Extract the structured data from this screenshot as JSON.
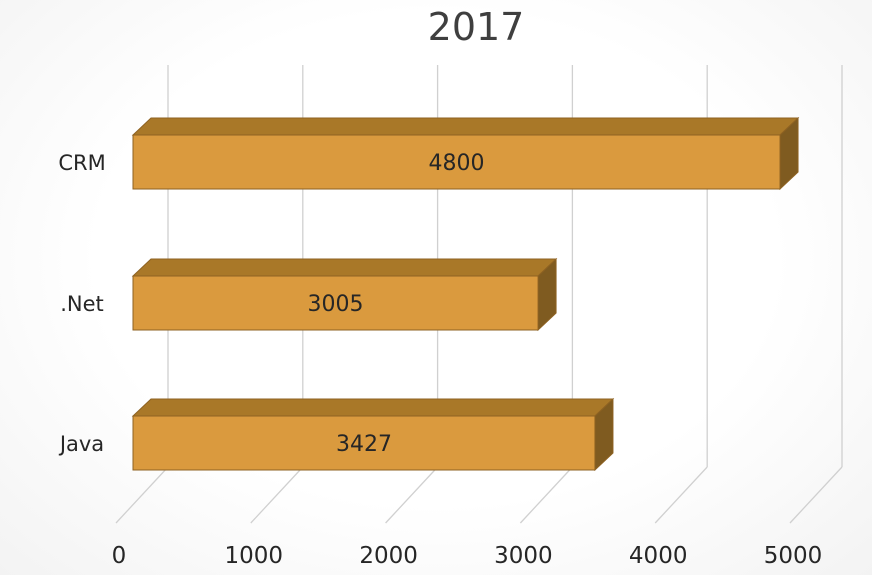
{
  "chart_data": {
    "type": "bar",
    "orientation": "horizontal",
    "style": "3d",
    "title": "2017",
    "xlabel": "",
    "ylabel": "",
    "categories": [
      "CRM",
      ".Net",
      "Java"
    ],
    "values": [
      4800,
      3005,
      3427
    ],
    "data_labels": [
      "4800",
      "3005",
      "3427"
    ],
    "xlim": [
      0,
      5000
    ],
    "x_ticks": [
      "0",
      "1000",
      "2000",
      "3000",
      "4000",
      "5000"
    ],
    "grid": true,
    "legend": "none",
    "colors": {
      "bar_front": "#DA9A3E",
      "bar_top": "#A97828",
      "bar_side": "#7F5B20",
      "bar_outline": "#8E6222",
      "gridline": "#D0D0D0"
    }
  }
}
